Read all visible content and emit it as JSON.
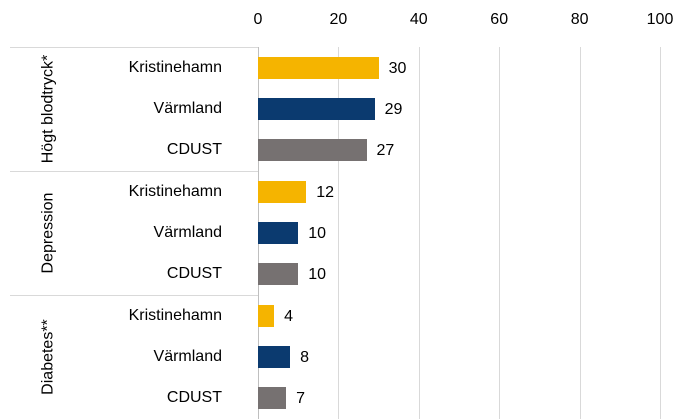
{
  "chart_data": {
    "type": "bar",
    "orientation": "horizontal",
    "groups": [
      "Högt blodtryck*",
      "Depression",
      "Diabetes**"
    ],
    "series": [
      {
        "name": "Kristinehamn",
        "color": "#f5b400",
        "values": [
          30,
          12,
          4
        ]
      },
      {
        "name": "Värmland",
        "color": "#0b3a6f",
        "values": [
          29,
          10,
          8
        ]
      },
      {
        "name": "CDUST",
        "color": "#767171",
        "values": [
          27,
          10,
          7
        ]
      }
    ],
    "xlim": [
      0,
      100
    ],
    "xticks": [
      0,
      20,
      40,
      60,
      80,
      100
    ],
    "grid": true
  }
}
